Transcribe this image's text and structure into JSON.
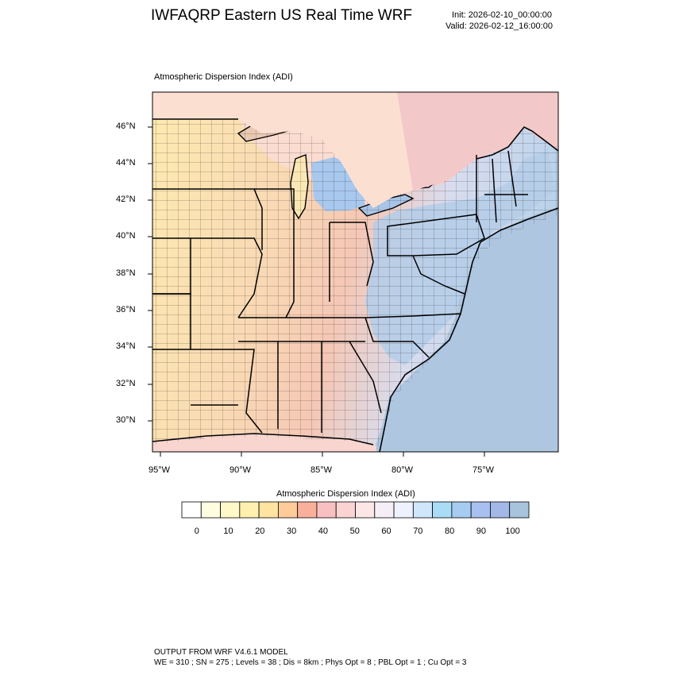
{
  "header": {
    "title": "IWFAQRP Eastern US Real Time WRF",
    "init": "Init: 2026-02-10_00:00:00",
    "valid": "Valid: 2026-02-12_16:00:00"
  },
  "map": {
    "field_title": "Atmospheric Dispersion Index   (ADI)",
    "lat_labels": [
      "46°N",
      "44°N",
      "42°N",
      "40°N",
      "38°N",
      "36°N",
      "34°N",
      "32°N",
      "30°N"
    ],
    "lon_labels": [
      "95°W",
      "90°W",
      "85°W",
      "80°W",
      "75°W"
    ]
  },
  "colorbar": {
    "title": "Atmospheric Dispersion Index  (ADI)",
    "tick_labels": [
      "0",
      "10",
      "20",
      "30",
      "40",
      "50",
      "60",
      "70",
      "80",
      "90",
      "100"
    ],
    "colors": [
      "#ffffff",
      "#fffde0",
      "#fff8c8",
      "#fff0b0",
      "#ffe3a0",
      "#ffcc99",
      "#f9b09a",
      "#f8c0c0",
      "#fbd3d3",
      "#fde6e6",
      "#f6eef6",
      "#eef2ff",
      "#cfe6fb",
      "#a8dcf7",
      "#a6ccf2",
      "#a8c0ef",
      "#a4b8e8",
      "#a8c4dc"
    ]
  },
  "footer": {
    "line1": "OUTPUT FROM WRF V4.6.1 MODEL",
    "line2": "WE = 310 ; SN = 275 ; Levels = 38 ; Dis = 8km ; Phys Opt = 8 ; PBL Opt = 1 ; Cu Opt = 3"
  },
  "colors": {
    "land_low": "#fde9b0",
    "land_mid": "#f6c7b0",
    "land_high": "#b9d6ee",
    "water": "#aec6e0",
    "border": "#000000"
  }
}
